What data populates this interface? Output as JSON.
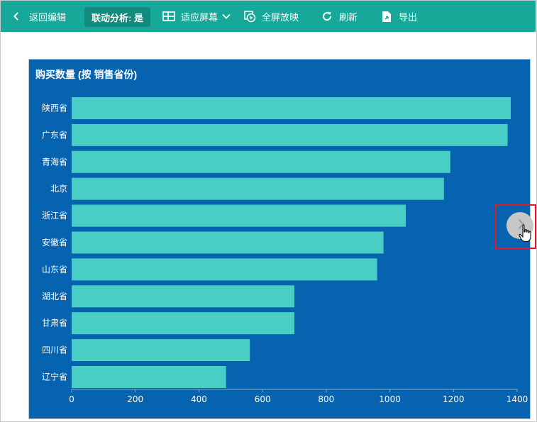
{
  "toolbar": {
    "back_label": "返回编辑",
    "linkage_label": "联动分析: 是",
    "fit_label": "适应屏幕",
    "fullscreen_label": "全屏放映",
    "refresh_label": "刷新",
    "export_label": "导出"
  },
  "colors": {
    "toolbar_bg": "#17a89a",
    "panel_bg": "#0563b0",
    "bar": "#48cec4",
    "highlight": "#e0182c"
  },
  "chart_data": {
    "type": "bar",
    "orientation": "horizontal",
    "title": "购买数量 (按 销售省份)",
    "xlabel": "",
    "ylabel": "",
    "categories": [
      "陕西省",
      "广东省",
      "青海省",
      "北京",
      "浙江省",
      "安徽省",
      "山东省",
      "湖北省",
      "甘肃省",
      "四川省",
      "辽宁省"
    ],
    "values": [
      1380,
      1370,
      1190,
      1170,
      1050,
      980,
      960,
      700,
      700,
      560,
      485
    ],
    "xlim": [
      0,
      1400
    ],
    "xticks": [
      0,
      200,
      400,
      600,
      800,
      1000,
      1200,
      1400
    ],
    "grid": false,
    "legend": "none"
  }
}
